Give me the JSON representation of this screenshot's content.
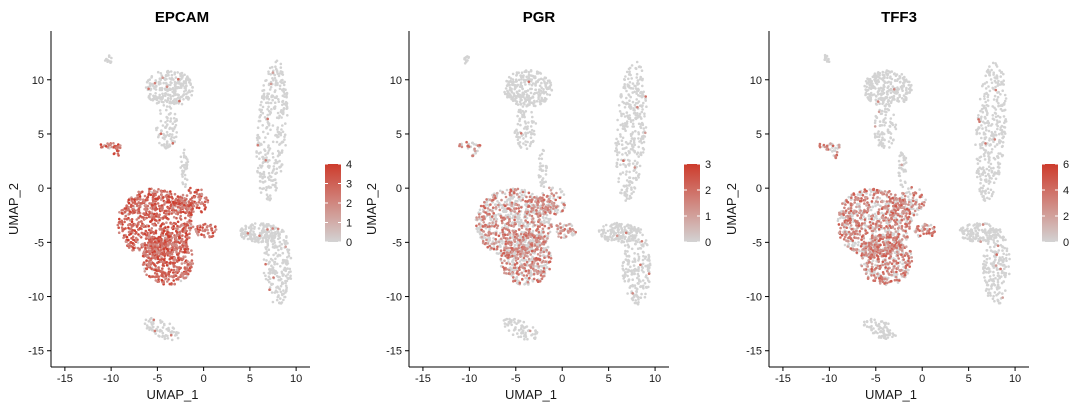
{
  "chart_data": [
    {
      "type": "scatter",
      "title": "EPCAM",
      "xlabel": "UMAP_1",
      "ylabel": "UMAP_2",
      "xlim": [
        -16.5,
        11.5
      ],
      "ylim": [
        -16.5,
        14.5
      ],
      "xticks": [
        -15,
        -10,
        -5,
        0,
        5,
        10
      ],
      "yticks": [
        -15,
        -10,
        -5,
        0,
        5,
        10
      ],
      "colorbar": {
        "min": 0,
        "max": 4,
        "ticks": [
          0,
          1,
          2,
          3,
          4
        ]
      },
      "colors": {
        "low": "#d3d3d3",
        "high": "#cd3b2c"
      },
      "grid": false,
      "legend": "right",
      "epithelial_level": 0.85
    },
    {
      "type": "scatter",
      "title": "PGR",
      "xlabel": "UMAP_1",
      "ylabel": "UMAP_2",
      "xlim": [
        -16.5,
        11.5
      ],
      "ylim": [
        -16.5,
        14.5
      ],
      "xticks": [
        -15,
        -10,
        -5,
        0,
        5,
        10
      ],
      "yticks": [
        -15,
        -10,
        -5,
        0,
        5,
        10
      ],
      "colorbar": {
        "min": 0,
        "max": 3,
        "ticks": [
          0,
          1,
          2,
          3
        ]
      },
      "colors": {
        "low": "#d3d3d3",
        "high": "#cd3b2c"
      },
      "grid": false,
      "legend": "right",
      "epithelial_level": 0.35
    },
    {
      "type": "scatter",
      "title": "TFF3",
      "xlabel": "UMAP_1",
      "ylabel": "UMAP_2",
      "xlim": [
        -16.5,
        11.5
      ],
      "ylim": [
        -16.5,
        14.5
      ],
      "xticks": [
        -15,
        -10,
        -5,
        0,
        5,
        10
      ],
      "yticks": [
        -15,
        -10,
        -5,
        0,
        5,
        10
      ],
      "colorbar": {
        "min": 0,
        "max": 6,
        "ticks": [
          0,
          2,
          4,
          6
        ]
      },
      "colors": {
        "low": "#d3d3d3",
        "high": "#cd3b2c"
      },
      "grid": false,
      "legend": "right",
      "epithelial_level": 0.45
    }
  ]
}
